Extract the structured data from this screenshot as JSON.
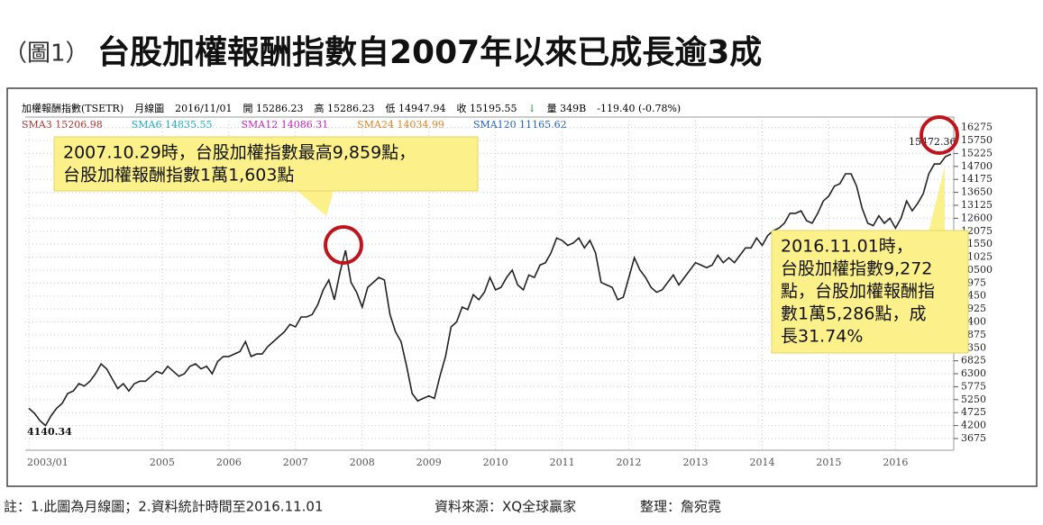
{
  "title_prefix": "（圖1）",
  "title": "台股加權報酬指數自2007年以來已成長逾3成",
  "header": [
    {
      "text": "加權報酬指數(TSETR)",
      "color": "#000000"
    },
    {
      "text": "月線圖",
      "color": "#000000"
    },
    {
      "text": "2016/11/01",
      "color": "#000000"
    },
    {
      "text": "開 15286.23",
      "color": "#000000"
    },
    {
      "text": "高 15286.23",
      "color": "#000000"
    },
    {
      "text": "低 14947.94",
      "color": "#000000"
    },
    {
      "text": "收 15195.55",
      "color": "#000000"
    },
    {
      "text": "↓",
      "color": "#1a9a3a"
    },
    {
      "text": "量 349B",
      "color": "#000000"
    },
    {
      "text": "-119.40 (-0.78%)",
      "color": "#000000"
    }
  ],
  "indicators": [
    {
      "text": "SMA3 15206.98",
      "color": "#b03030"
    },
    {
      "text": "SMA6 14835.55",
      "color": "#20a8c8"
    },
    {
      "text": "SMA12 14086.31",
      "color": "#c020c0"
    },
    {
      "text": "SMA24 14034.99",
      "color": "#e08020"
    },
    {
      "text": "SMA120 11165.62",
      "color": "#2060c0"
    }
  ],
  "chart_data": {
    "type": "line",
    "color": "#222222",
    "grid": true,
    "categories": [
      "2003/01",
      null,
      null,
      null,
      null,
      null,
      null,
      null,
      null,
      null,
      null,
      null,
      null,
      null,
      null,
      null,
      null,
      null,
      null,
      null,
      null,
      null,
      null,
      null,
      "2005",
      null,
      null,
      null,
      null,
      null,
      null,
      null,
      null,
      null,
      null,
      null,
      "2006",
      null,
      null,
      null,
      null,
      null,
      null,
      null,
      null,
      null,
      null,
      null,
      "2007",
      null,
      null,
      null,
      null,
      null,
      null,
      null,
      null,
      null,
      null,
      null,
      "2008",
      null,
      null,
      null,
      null,
      null,
      null,
      null,
      null,
      null,
      null,
      null,
      "2009",
      null,
      null,
      null,
      null,
      null,
      null,
      null,
      null,
      null,
      null,
      null,
      "2010",
      null,
      null,
      null,
      null,
      null,
      null,
      null,
      null,
      null,
      null,
      null,
      "2011",
      null,
      null,
      null,
      null,
      null,
      null,
      null,
      null,
      null,
      null,
      null,
      "2012",
      null,
      null,
      null,
      null,
      null,
      null,
      null,
      null,
      null,
      null,
      null,
      "2013",
      null,
      null,
      null,
      null,
      null,
      null,
      null,
      null,
      null,
      null,
      null,
      "2014",
      null,
      null,
      null,
      null,
      null,
      null,
      null,
      null,
      null,
      null,
      null,
      "2015",
      null,
      null,
      null,
      null,
      null,
      null,
      null,
      null,
      null,
      null,
      null,
      "2016",
      null,
      null,
      null,
      null,
      null,
      null,
      null,
      null,
      null,
      null
    ],
    "series": [
      {
        "name": "加權報酬指數(TSETR)",
        "color": "#222222",
        "values": [
          4900,
          4700,
          4400,
          4200,
          4600,
          4900,
          5100,
          5500,
          5600,
          5900,
          5800,
          6000,
          6300,
          6700,
          6500,
          6100,
          5700,
          5900,
          5600,
          5900,
          6000,
          6000,
          6200,
          6400,
          6300,
          6600,
          6400,
          6200,
          6300,
          6600,
          6700,
          6500,
          6600,
          6300,
          6800,
          7000,
          7000,
          7100,
          7200,
          7600,
          7000,
          7100,
          7100,
          7400,
          7600,
          7800,
          8000,
          8300,
          8200,
          8600,
          8600,
          8700,
          9100,
          9700,
          10100,
          9300,
          10400,
          11300,
          10000,
          9600,
          9000,
          9800,
          10000,
          10200,
          10100,
          8700,
          8000,
          7600,
          6600,
          5500,
          5200,
          5300,
          5400,
          5300,
          6200,
          7000,
          8200,
          8400,
          9000,
          8900,
          9500,
          9300,
          9600,
          10200,
          9700,
          9800,
          10200,
          10500,
          9900,
          9700,
          10300,
          10200,
          10700,
          10800,
          11200,
          11800,
          11700,
          11500,
          11600,
          11800,
          11400,
          11700,
          11200,
          10000,
          9900,
          9800,
          9300,
          9400,
          10200,
          11000,
          10500,
          10200,
          9800,
          9600,
          9700,
          10000,
          10300,
          9900,
          10200,
          10500,
          10800,
          10700,
          10600,
          10700,
          11100,
          10800,
          11000,
          10800,
          11100,
          11400,
          11400,
          11800,
          11500,
          11900,
          12100,
          12200,
          12400,
          12800,
          12800,
          12900,
          12500,
          12400,
          12800,
          13300,
          13500,
          13900,
          14000,
          14400,
          14400,
          13900,
          13000,
          12400,
          12300,
          12700,
          12400,
          12600,
          12200,
          12600,
          13300,
          12900,
          13200,
          13600,
          14400,
          14800,
          14800,
          15100,
          15195.55
        ]
      }
    ],
    "ylim": [
      3200,
      16700
    ],
    "yticks": [
      3675,
      4200,
      4725,
      5250,
      5775,
      6300,
      6825,
      7350,
      7875,
      8400,
      8925,
      9450,
      9975,
      10500,
      11025,
      11550,
      12075,
      12600,
      13125,
      13650,
      14175,
      14700,
      15225,
      15750,
      16275
    ],
    "annotations": [
      "4140.34",
      "15472.36"
    ]
  },
  "callouts": [
    {
      "lines": [
        "2007.10.29時，台股加權指數最高9,859點，",
        "台股加權報酬指數1萬1,603點"
      ]
    },
    {
      "lines": [
        "2016.11.01時，",
        "台股加權指數9,272",
        "點，台股加權報酬指",
        "數1萬5,286點，成",
        "長31.74%"
      ]
    }
  ],
  "footer": [
    "註：1.此圖為月線圖；2.資料統計時間至2016.11.01",
    "資料來源：XQ全球贏家",
    "整理：詹宛霓"
  ]
}
